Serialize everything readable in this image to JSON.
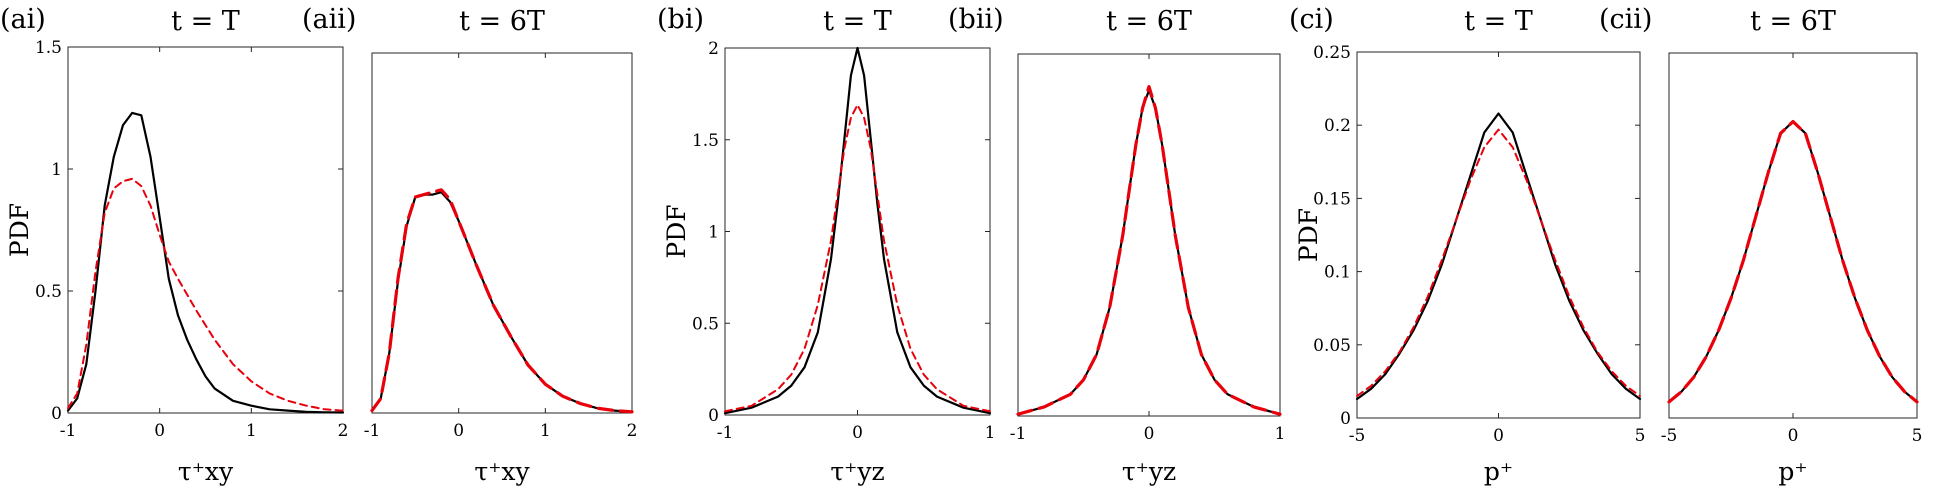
{
  "series_legend": {
    "solid": {
      "color": "#000000"
    },
    "dashed": {
      "color": "#e8000b"
    }
  },
  "chart_data": [
    {
      "type": "line",
      "label": "(ai)",
      "title": "t = T",
      "xlabel": "τ⁺xy",
      "ylabel": "PDF",
      "xlim": [
        -1,
        2
      ],
      "ylim": [
        0,
        1.5
      ],
      "xticks": [
        -1,
        0,
        1,
        2
      ],
      "yticks": [
        0,
        0.5,
        1,
        1.5
      ],
      "series": [
        {
          "style": "solid",
          "x": [
            -1,
            -0.9,
            -0.8,
            -0.7,
            -0.6,
            -0.5,
            -0.4,
            -0.3,
            -0.2,
            -0.1,
            0,
            0.1,
            0.2,
            0.3,
            0.4,
            0.5,
            0.6,
            0.8,
            1,
            1.2,
            1.4,
            1.6,
            1.8,
            2
          ],
          "values": [
            0.01,
            0.06,
            0.2,
            0.5,
            0.85,
            1.05,
            1.18,
            1.23,
            1.22,
            1.05,
            0.8,
            0.55,
            0.4,
            0.3,
            0.22,
            0.15,
            0.1,
            0.05,
            0.03,
            0.015,
            0.01,
            0.005,
            0.003,
            0.002
          ]
        },
        {
          "style": "dashed",
          "x": [
            -1,
            -0.9,
            -0.8,
            -0.7,
            -0.6,
            -0.5,
            -0.4,
            -0.3,
            -0.2,
            -0.1,
            0,
            0.1,
            0.2,
            0.4,
            0.6,
            0.8,
            1,
            1.2,
            1.4,
            1.6,
            1.8,
            2
          ],
          "values": [
            0.02,
            0.08,
            0.28,
            0.58,
            0.82,
            0.92,
            0.95,
            0.96,
            0.93,
            0.85,
            0.73,
            0.62,
            0.55,
            0.42,
            0.3,
            0.2,
            0.13,
            0.08,
            0.05,
            0.03,
            0.015,
            0.01
          ]
        }
      ]
    },
    {
      "type": "line",
      "label": "(aii)",
      "title": "t = 6T",
      "xlabel": "τ⁺xy",
      "ylabel": "",
      "xlim": [
        -1,
        2
      ],
      "ylim": [
        0,
        1.5
      ],
      "xticks": [
        -1,
        0,
        1,
        2
      ],
      "yticks": [],
      "series": [
        {
          "style": "solid",
          "x": [
            -1,
            -0.9,
            -0.8,
            -0.7,
            -0.6,
            -0.5,
            -0.4,
            -0.3,
            -0.2,
            -0.1,
            0,
            0.2,
            0.4,
            0.6,
            0.8,
            1,
            1.2,
            1.4,
            1.6,
            1.8,
            2
          ],
          "values": [
            0.01,
            0.06,
            0.25,
            0.55,
            0.78,
            0.9,
            0.91,
            0.91,
            0.92,
            0.88,
            0.8,
            0.62,
            0.45,
            0.32,
            0.2,
            0.12,
            0.07,
            0.04,
            0.02,
            0.01,
            0.005
          ]
        },
        {
          "style": "dashed",
          "x": [
            -1,
            -0.9,
            -0.8,
            -0.7,
            -0.6,
            -0.5,
            -0.4,
            -0.3,
            -0.2,
            -0.1,
            0,
            0.2,
            0.4,
            0.6,
            0.8,
            1,
            1.2,
            1.4,
            1.6,
            1.8,
            2
          ],
          "values": [
            0.01,
            0.06,
            0.25,
            0.56,
            0.79,
            0.9,
            0.91,
            0.92,
            0.93,
            0.89,
            0.8,
            0.62,
            0.45,
            0.32,
            0.2,
            0.12,
            0.07,
            0.04,
            0.02,
            0.01,
            0.005
          ]
        }
      ]
    },
    {
      "type": "line",
      "label": "(bi)",
      "title": "t = T",
      "xlabel": "τ⁺yz",
      "ylabel": "PDF",
      "xlim": [
        -1,
        1
      ],
      "ylim": [
        0,
        2
      ],
      "xticks": [
        -1,
        0,
        1
      ],
      "yticks": [
        0,
        0.5,
        1,
        1.5,
        2
      ],
      "series": [
        {
          "style": "solid",
          "x": [
            -1,
            -0.8,
            -0.6,
            -0.5,
            -0.4,
            -0.3,
            -0.2,
            -0.15,
            -0.1,
            -0.05,
            0,
            0.05,
            0.1,
            0.15,
            0.2,
            0.3,
            0.4,
            0.5,
            0.6,
            0.8,
            1
          ],
          "values": [
            0.01,
            0.04,
            0.1,
            0.16,
            0.26,
            0.45,
            0.85,
            1.15,
            1.5,
            1.85,
            2.0,
            1.85,
            1.5,
            1.15,
            0.85,
            0.45,
            0.26,
            0.16,
            0.1,
            0.04,
            0.01
          ]
        },
        {
          "style": "dashed",
          "x": [
            -1,
            -0.8,
            -0.6,
            -0.5,
            -0.4,
            -0.3,
            -0.2,
            -0.15,
            -0.1,
            -0.05,
            0,
            0.05,
            0.1,
            0.15,
            0.2,
            0.3,
            0.4,
            0.5,
            0.6,
            0.8,
            1
          ],
          "values": [
            0.02,
            0.05,
            0.14,
            0.22,
            0.36,
            0.6,
            0.95,
            1.2,
            1.45,
            1.62,
            1.69,
            1.62,
            1.45,
            1.2,
            0.95,
            0.6,
            0.36,
            0.22,
            0.14,
            0.05,
            0.02
          ]
        }
      ]
    },
    {
      "type": "line",
      "label": "(bii)",
      "title": "t = 6T",
      "xlabel": "τ⁺yz",
      "ylabel": "",
      "xlim": [
        -1,
        1
      ],
      "ylim": [
        0,
        2
      ],
      "xticks": [
        -1,
        0,
        1
      ],
      "yticks": [],
      "series": [
        {
          "style": "solid",
          "x": [
            -1,
            -0.8,
            -0.6,
            -0.5,
            -0.4,
            -0.3,
            -0.2,
            -0.15,
            -0.1,
            -0.05,
            0,
            0.05,
            0.1,
            0.15,
            0.2,
            0.3,
            0.4,
            0.5,
            0.6,
            0.8,
            1
          ],
          "values": [
            0.01,
            0.05,
            0.12,
            0.2,
            0.34,
            0.6,
            1.0,
            1.25,
            1.5,
            1.7,
            1.8,
            1.7,
            1.5,
            1.25,
            1.0,
            0.6,
            0.34,
            0.2,
            0.12,
            0.05,
            0.01
          ]
        },
        {
          "style": "dashed",
          "x": [
            -1,
            -0.8,
            -0.6,
            -0.5,
            -0.4,
            -0.3,
            -0.2,
            -0.15,
            -0.1,
            -0.05,
            0,
            0.05,
            0.1,
            0.15,
            0.2,
            0.3,
            0.4,
            0.5,
            0.6,
            0.8,
            1
          ],
          "values": [
            0.01,
            0.05,
            0.12,
            0.2,
            0.34,
            0.6,
            1.0,
            1.25,
            1.5,
            1.7,
            1.82,
            1.7,
            1.5,
            1.25,
            1.0,
            0.6,
            0.34,
            0.2,
            0.12,
            0.05,
            0.01
          ]
        }
      ]
    },
    {
      "type": "line",
      "label": "(ci)",
      "title": "t = T",
      "xlabel": "p⁺",
      "ylabel": "PDF",
      "xlim": [
        -5,
        5
      ],
      "ylim": [
        0,
        0.25
      ],
      "xticks": [
        -5,
        0,
        5
      ],
      "yticks": [
        0,
        0.05,
        0.1,
        0.15,
        0.2,
        0.25
      ],
      "series": [
        {
          "style": "solid",
          "x": [
            -5,
            -4.5,
            -4,
            -3.5,
            -3,
            -2.5,
            -2,
            -1.5,
            -1,
            -0.5,
            0,
            0.5,
            1,
            1.5,
            2,
            2.5,
            3,
            3.5,
            4,
            4.5,
            5
          ],
          "values": [
            0.013,
            0.02,
            0.03,
            0.044,
            0.06,
            0.08,
            0.105,
            0.135,
            0.165,
            0.195,
            0.208,
            0.195,
            0.165,
            0.135,
            0.105,
            0.08,
            0.06,
            0.044,
            0.03,
            0.02,
            0.013
          ]
        },
        {
          "style": "dashed",
          "x": [
            -5,
            -4.5,
            -4,
            -3.5,
            -3,
            -2.5,
            -2,
            -1.5,
            -1,
            -0.5,
            0,
            0.5,
            1,
            1.5,
            2,
            2.5,
            3,
            3.5,
            4,
            4.5,
            5
          ],
          "values": [
            0.015,
            0.022,
            0.032,
            0.045,
            0.062,
            0.083,
            0.108,
            0.135,
            0.162,
            0.185,
            0.197,
            0.185,
            0.162,
            0.135,
            0.108,
            0.083,
            0.062,
            0.045,
            0.032,
            0.022,
            0.015
          ]
        }
      ]
    },
    {
      "type": "line",
      "label": "(cii)",
      "title": "t = 6T",
      "xlabel": "p⁺",
      "ylabel": "",
      "xlim": [
        -5,
        5
      ],
      "ylim": [
        0,
        0.25
      ],
      "xticks": [
        -5,
        0,
        5
      ],
      "yticks": [],
      "series": [
        {
          "style": "solid",
          "x": [
            -5,
            -4.5,
            -4,
            -3.5,
            -3,
            -2.5,
            -2,
            -1.5,
            -1,
            -0.5,
            0,
            0.5,
            1,
            1.5,
            2,
            2.5,
            3,
            3.5,
            4,
            4.5,
            5
          ],
          "values": [
            0.011,
            0.018,
            0.028,
            0.042,
            0.06,
            0.082,
            0.108,
            0.138,
            0.168,
            0.195,
            0.203,
            0.195,
            0.168,
            0.138,
            0.108,
            0.082,
            0.06,
            0.042,
            0.028,
            0.018,
            0.011
          ]
        },
        {
          "style": "dashed",
          "x": [
            -5,
            -4.5,
            -4,
            -3.5,
            -3,
            -2.5,
            -2,
            -1.5,
            -1,
            -0.5,
            0,
            0.5,
            1,
            1.5,
            2,
            2.5,
            3,
            3.5,
            4,
            4.5,
            5
          ],
          "values": [
            0.011,
            0.018,
            0.028,
            0.042,
            0.06,
            0.082,
            0.108,
            0.138,
            0.168,
            0.195,
            0.203,
            0.195,
            0.168,
            0.138,
            0.108,
            0.082,
            0.06,
            0.042,
            0.028,
            0.018,
            0.011
          ]
        }
      ]
    }
  ]
}
